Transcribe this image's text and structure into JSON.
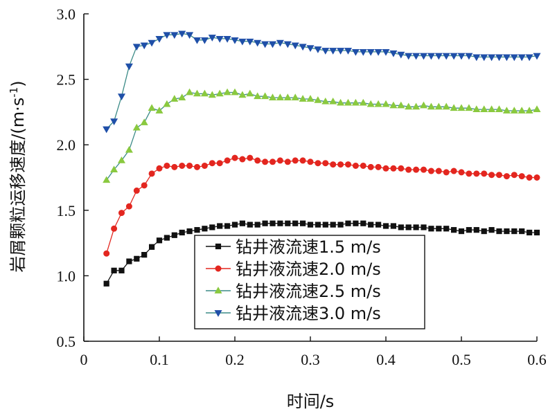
{
  "chart_data": {
    "type": "line",
    "xlabel": "时间/s",
    "ylabel": "岩屑颗粒运移速度/(m·s",
    "ylabel_sup": "-1",
    "ylabel_close": ")",
    "xlim": [
      0,
      0.6
    ],
    "ylim": [
      0.5,
      3.0
    ],
    "x_ticks": [
      "0",
      "0.1",
      "0.2",
      "0.3",
      "0.4",
      "0.5",
      "0.6"
    ],
    "y_ticks": [
      "0.5",
      "1.0",
      "1.5",
      "2.0",
      "2.5",
      "3.0"
    ],
    "grid": false,
    "legend_position": "bottom-center",
    "x": [
      0.03,
      0.04,
      0.05,
      0.06,
      0.07,
      0.08,
      0.09,
      0.1,
      0.11,
      0.12,
      0.13,
      0.14,
      0.15,
      0.16,
      0.17,
      0.18,
      0.19,
      0.2,
      0.21,
      0.22,
      0.23,
      0.24,
      0.25,
      0.26,
      0.27,
      0.28,
      0.29,
      0.3,
      0.31,
      0.32,
      0.33,
      0.34,
      0.35,
      0.36,
      0.37,
      0.38,
      0.39,
      0.4,
      0.41,
      0.42,
      0.43,
      0.44,
      0.45,
      0.46,
      0.47,
      0.48,
      0.49,
      0.5,
      0.51,
      0.52,
      0.53,
      0.54,
      0.55,
      0.56,
      0.57,
      0.58,
      0.59,
      0.6
    ],
    "series": [
      {
        "name": "钻井液流速1.5 m/s",
        "color": "#111111",
        "marker": "square",
        "values": [
          0.94,
          1.04,
          1.04,
          1.11,
          1.13,
          1.16,
          1.22,
          1.27,
          1.29,
          1.31,
          1.33,
          1.34,
          1.35,
          1.36,
          1.37,
          1.38,
          1.38,
          1.39,
          1.4,
          1.39,
          1.39,
          1.4,
          1.4,
          1.4,
          1.4,
          1.4,
          1.4,
          1.39,
          1.39,
          1.39,
          1.39,
          1.39,
          1.4,
          1.4,
          1.4,
          1.39,
          1.39,
          1.38,
          1.38,
          1.37,
          1.37,
          1.37,
          1.37,
          1.36,
          1.36,
          1.36,
          1.35,
          1.34,
          1.35,
          1.35,
          1.34,
          1.35,
          1.34,
          1.34,
          1.34,
          1.34,
          1.33,
          1.33
        ]
      },
      {
        "name": "钻井液流速2.0 m/s",
        "color": "#e3261f",
        "marker": "circle",
        "values": [
          1.17,
          1.36,
          1.48,
          1.53,
          1.65,
          1.69,
          1.78,
          1.82,
          1.84,
          1.83,
          1.84,
          1.84,
          1.83,
          1.84,
          1.86,
          1.86,
          1.88,
          1.9,
          1.89,
          1.9,
          1.88,
          1.87,
          1.87,
          1.88,
          1.87,
          1.88,
          1.88,
          1.87,
          1.86,
          1.86,
          1.85,
          1.85,
          1.85,
          1.84,
          1.84,
          1.83,
          1.83,
          1.82,
          1.82,
          1.82,
          1.81,
          1.81,
          1.81,
          1.8,
          1.8,
          1.79,
          1.8,
          1.79,
          1.78,
          1.78,
          1.78,
          1.77,
          1.77,
          1.76,
          1.77,
          1.76,
          1.75,
          1.75
        ]
      },
      {
        "name": "钻井液流速2.5 m/s",
        "color": "#8ac93f",
        "line_color": "#3a8a86",
        "marker": "triangle-up",
        "values": [
          1.73,
          1.81,
          1.88,
          1.96,
          2.13,
          2.17,
          2.28,
          2.26,
          2.31,
          2.35,
          2.36,
          2.4,
          2.39,
          2.39,
          2.38,
          2.39,
          2.4,
          2.4,
          2.38,
          2.39,
          2.37,
          2.37,
          2.36,
          2.36,
          2.36,
          2.36,
          2.35,
          2.35,
          2.34,
          2.33,
          2.33,
          2.32,
          2.32,
          2.32,
          2.32,
          2.31,
          2.31,
          2.31,
          2.3,
          2.3,
          2.29,
          2.29,
          2.3,
          2.29,
          2.29,
          2.29,
          2.28,
          2.28,
          2.28,
          2.27,
          2.27,
          2.27,
          2.27,
          2.26,
          2.26,
          2.26,
          2.26,
          2.27
        ]
      },
      {
        "name": "钻井液流速3.0 m/s",
        "color": "#1f4fa8",
        "line_color": "#3a8a86",
        "marker": "triangle-down",
        "values": [
          2.12,
          2.18,
          2.37,
          2.6,
          2.75,
          2.76,
          2.78,
          2.81,
          2.84,
          2.84,
          2.85,
          2.84,
          2.8,
          2.8,
          2.82,
          2.81,
          2.81,
          2.8,
          2.79,
          2.79,
          2.78,
          2.77,
          2.77,
          2.78,
          2.77,
          2.76,
          2.75,
          2.74,
          2.73,
          2.72,
          2.72,
          2.72,
          2.72,
          2.71,
          2.71,
          2.71,
          2.71,
          2.71,
          2.7,
          2.69,
          2.68,
          2.68,
          2.68,
          2.68,
          2.68,
          2.68,
          2.68,
          2.68,
          2.68,
          2.67,
          2.67,
          2.67,
          2.67,
          2.67,
          2.67,
          2.67,
          2.67,
          2.68
        ]
      }
    ]
  }
}
